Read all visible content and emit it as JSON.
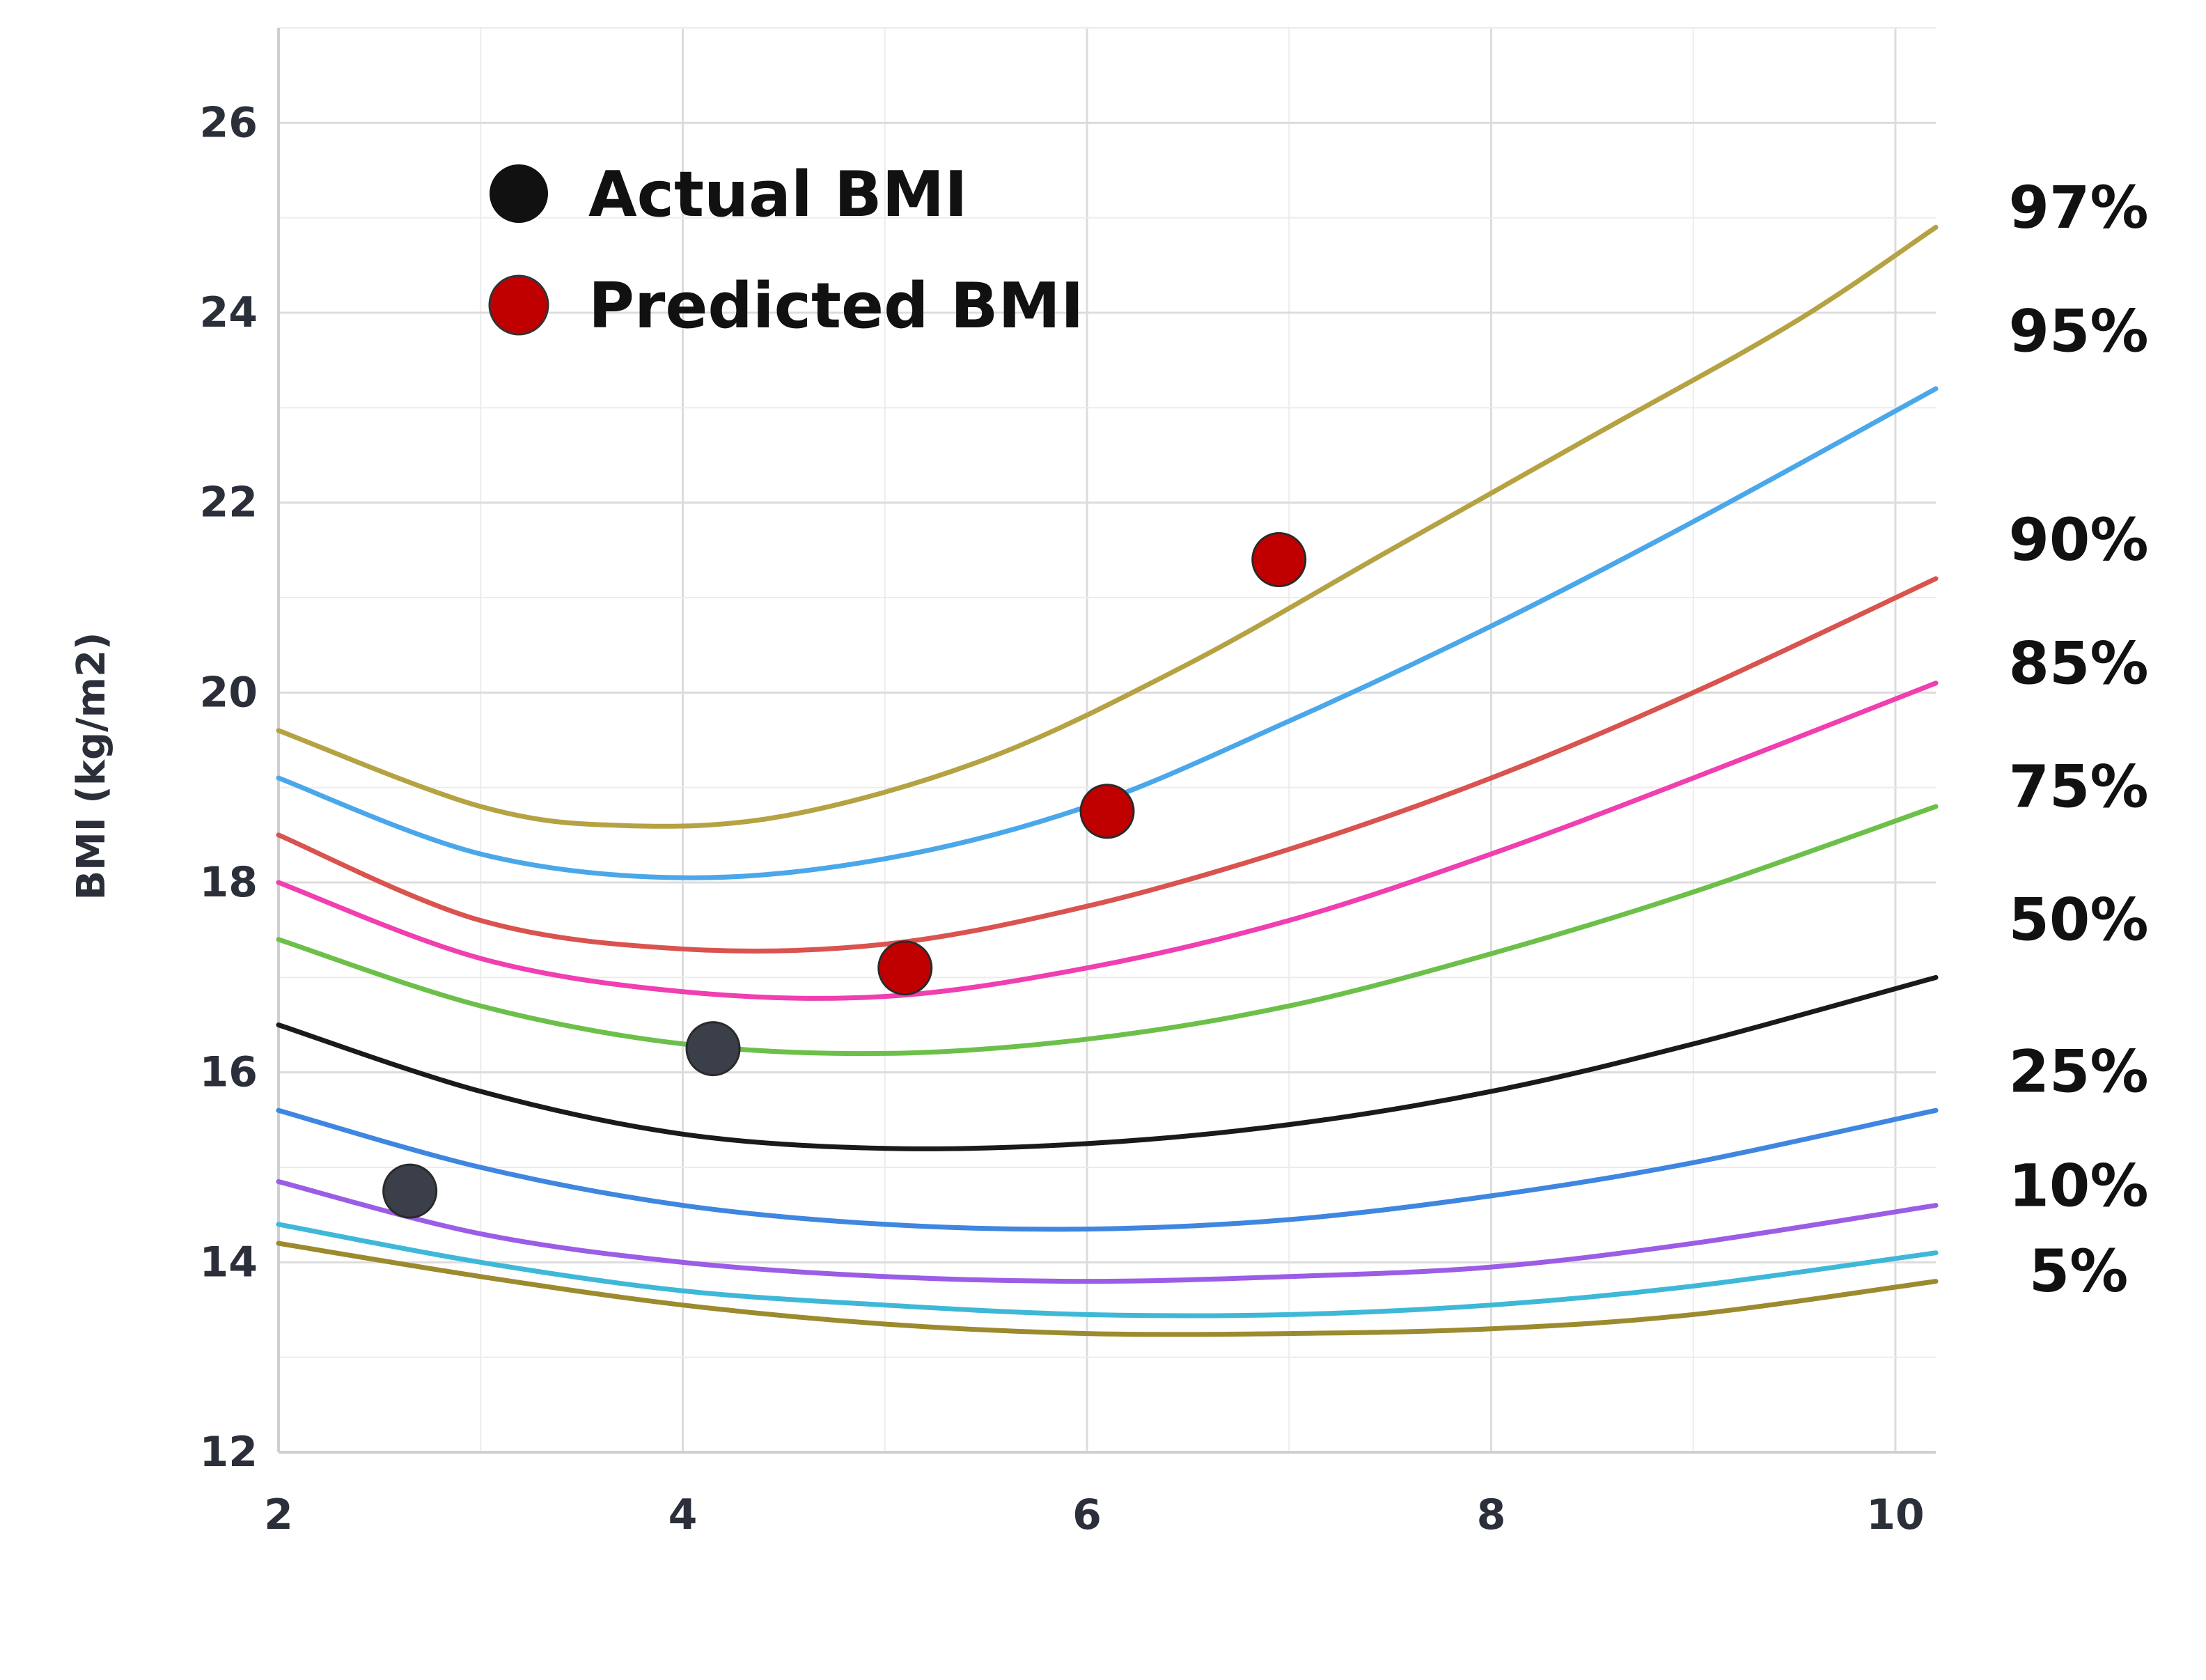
{
  "chart_data": {
    "type": "line",
    "ylabel": "BMI (kg/m2)",
    "xlabel": "",
    "xlim": [
      2,
      10.2
    ],
    "ylim": [
      12,
      27
    ],
    "x_ticks": [
      2,
      4,
      6,
      8,
      10
    ],
    "y_ticks": [
      12,
      14,
      16,
      18,
      20,
      22,
      24,
      26
    ],
    "grid": true,
    "legend": {
      "placement": "top-left",
      "entries": [
        {
          "label": "Actual BMI",
          "color": "#111111"
        },
        {
          "label": "Predicted BMI",
          "color": "#c00000"
        }
      ]
    },
    "series": [
      {
        "name": "97%",
        "color": "#b5a242",
        "x": [
          2,
          3,
          3.7,
          4.5,
          5.5,
          6.5,
          7.5,
          8.5,
          9.5,
          10.2
        ],
        "y": [
          19.6,
          18.8,
          18.6,
          18.7,
          19.3,
          20.3,
          21.5,
          22.7,
          23.9,
          24.9
        ]
      },
      {
        "name": "95%",
        "color": "#4aa7ea",
        "x": [
          2,
          3,
          4,
          5,
          6,
          7,
          8,
          9,
          10.2
        ],
        "y": [
          19.1,
          18.3,
          18.05,
          18.25,
          18.8,
          19.7,
          20.7,
          21.8,
          23.2
        ]
      },
      {
        "name": "90%",
        "color": "#d9534f",
        "x": [
          2,
          3,
          4,
          5,
          6,
          7,
          8,
          9,
          10.2
        ],
        "y": [
          18.5,
          17.6,
          17.3,
          17.35,
          17.75,
          18.35,
          19.1,
          20.0,
          21.2
        ]
      },
      {
        "name": "85%",
        "color": "#ef3fb0",
        "x": [
          2,
          3,
          4,
          5,
          6,
          7,
          8,
          9,
          10.2
        ],
        "y": [
          18.0,
          17.2,
          16.85,
          16.8,
          17.1,
          17.6,
          18.3,
          19.1,
          20.1
        ]
      },
      {
        "name": "75%",
        "color": "#6cc04a",
        "x": [
          2,
          3,
          4,
          5,
          6,
          7,
          8,
          9,
          10.2
        ],
        "y": [
          17.4,
          16.7,
          16.3,
          16.2,
          16.35,
          16.7,
          17.25,
          17.9,
          18.8
        ]
      },
      {
        "name": "50%",
        "color": "#1a1a1a",
        "x": [
          2,
          3,
          4,
          5,
          6,
          7,
          8,
          9,
          10.2
        ],
        "y": [
          16.5,
          15.8,
          15.35,
          15.2,
          15.25,
          15.45,
          15.8,
          16.3,
          17.0
        ]
      },
      {
        "name": "25%",
        "color": "#3f86e0",
        "x": [
          2,
          3,
          4,
          5,
          6,
          7,
          8,
          9,
          10.2
        ],
        "y": [
          15.6,
          15.0,
          14.6,
          14.4,
          14.35,
          14.45,
          14.7,
          15.05,
          15.6
        ]
      },
      {
        "name": "10%",
        "color": "#9b5de5",
        "x": [
          2,
          3,
          4,
          5,
          6,
          7,
          8,
          9,
          10.2
        ],
        "y": [
          14.85,
          14.3,
          14.0,
          13.85,
          13.8,
          13.85,
          13.95,
          14.2,
          14.6
        ]
      },
      {
        "name": "5%",
        "color": "#3fb8d8",
        "x": [
          2,
          3,
          4,
          5,
          6,
          7,
          8,
          9,
          10.2
        ],
        "y": [
          14.4,
          14.0,
          13.7,
          13.55,
          13.45,
          13.45,
          13.55,
          13.75,
          14.1
        ]
      },
      {
        "name": "",
        "color": "#9c8a2e",
        "x": [
          2,
          3,
          4,
          5,
          6,
          7,
          8,
          9,
          10.2
        ],
        "y": [
          14.2,
          13.85,
          13.55,
          13.35,
          13.25,
          13.25,
          13.3,
          13.45,
          13.8
        ]
      }
    ],
    "points": [
      {
        "series": "Actual BMI",
        "x": 2.65,
        "y": 14.75,
        "color": "#3a3f4a"
      },
      {
        "series": "Actual BMI",
        "x": 4.15,
        "y": 16.25,
        "color": "#3a3f4a"
      },
      {
        "series": "Predicted BMI",
        "x": 5.1,
        "y": 17.1,
        "color": "#c00000"
      },
      {
        "series": "Predicted BMI",
        "x": 6.1,
        "y": 18.75,
        "color": "#c00000"
      },
      {
        "series": "Predicted BMI",
        "x": 6.95,
        "y": 21.4,
        "color": "#c00000"
      }
    ],
    "right_labels": [
      {
        "text": "97%",
        "y": 25.1
      },
      {
        "text": "95%",
        "y": 23.8
      },
      {
        "text": "90%",
        "y": 21.6
      },
      {
        "text": "85%",
        "y": 20.3
      },
      {
        "text": "75%",
        "y": 19.0
      },
      {
        "text": "50%",
        "y": 17.6
      },
      {
        "text": "25%",
        "y": 16.0
      },
      {
        "text": "10%",
        "y": 14.8
      },
      {
        "text": "5%",
        "y": 13.9
      }
    ]
  }
}
